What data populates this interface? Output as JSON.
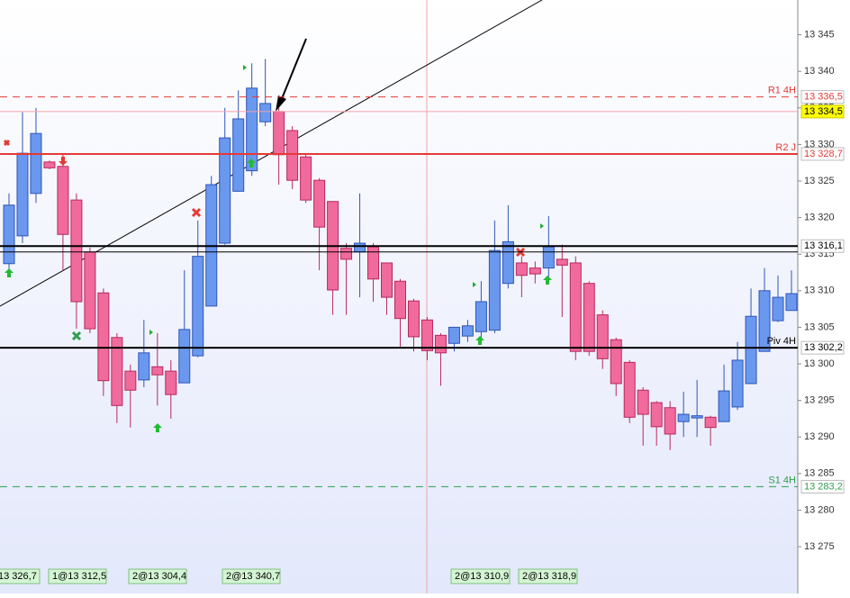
{
  "chart_data": {
    "type": "candlestick",
    "ylim": [
      13270,
      13350
    ],
    "yticks": [
      {
        "value": 13275,
        "label": "13 275"
      },
      {
        "value": 13280,
        "label": "13 280"
      },
      {
        "value": 13285,
        "label": "13 285"
      },
      {
        "value": 13290,
        "label": "13 290"
      },
      {
        "value": 13295,
        "label": "13 295"
      },
      {
        "value": 13300,
        "label": "13 300"
      },
      {
        "value": 13305,
        "label": "13 305"
      },
      {
        "value": 13310,
        "label": "13 310"
      },
      {
        "value": 13315,
        "label": "13 315"
      },
      {
        "value": 13320,
        "label": "13 320"
      },
      {
        "value": 13325,
        "label": "13 325"
      },
      {
        "value": 13330,
        "label": "13 330"
      },
      {
        "value": 13335,
        "label": "13 335"
      },
      {
        "value": 13340,
        "label": "13 340"
      },
      {
        "value": 13345,
        "label": "13 345"
      }
    ],
    "up_color": "#6a98ee",
    "down_color": "#f06b9c",
    "open": [
      13313.7,
      13317.5,
      13323.3,
      13327.6,
      13327.0,
      13322.4,
      13315.3,
      13309.7,
      13303.6,
      13299.0,
      13297.8,
      13299.6,
      13299.0,
      13297.4,
      13301.1,
      13307.9,
      13316.5,
      13323.6,
      13326.4,
      13333.1,
      13334.5,
      13331.9,
      13328.3,
      13325.1,
      13322.2,
      13315.8,
      13315.3,
      13316.0,
      13313.8,
      13311.3,
      13308.6,
      13306.0,
      13303.9,
      13302.8,
      13303.8,
      13304.4,
      13304.6,
      13311.0,
      13313.8,
      13313.1,
      13313.1,
      13314.3,
      13313.8,
      13311.0,
      13306.7,
      13303.3,
      13300.2,
      13296.4,
      13294.7,
      13294.0,
      13292.1,
      13292.6,
      13292.7,
      13292.1,
      13294.1,
      13297.3,
      13301.7,
      13305.9,
      13307.3
    ],
    "high": [
      13323.3,
      13334.4,
      13335.0,
      13327.8,
      13328.8,
      13323.3,
      13315.9,
      13310.3,
      13304.2,
      13299.9,
      13306.0,
      13304.2,
      13300.5,
      13312.8,
      13319.6,
      13325.7,
      13335.0,
      13337.4,
      13341.1,
      13341.7,
      13335.0,
      13332.5,
      13328.6,
      13325.4,
      13322.2,
      13316.5,
      13323.3,
      13316.5,
      13313.8,
      13311.6,
      13308.9,
      13306.4,
      13304.2,
      13305.0,
      13306.0,
      13311.3,
      13319.6,
      13321.7,
      13314.7,
      13314.0,
      13320.2,
      13316.3,
      13314.7,
      13311.3,
      13307.3,
      13303.6,
      13300.5,
      13296.8,
      13294.9,
      13294.9,
      13296.2,
      13297.8,
      13292.9,
      13299.9,
      13303.0,
      13310.3,
      13313.1,
      13312.1,
      13312.8
    ],
    "low": [
      13312.8,
      13316.5,
      13322.0,
      13326.6,
      13312.8,
      13304.8,
      13304.2,
      13295.6,
      13291.9,
      13291.3,
      13296.8,
      13294.3,
      13292.5,
      13297.4,
      13300.9,
      13307.9,
      13316.3,
      13323.6,
      13325.7,
      13332.5,
      13324.5,
      13323.9,
      13322.0,
      13312.8,
      13306.7,
      13306.7,
      13309.1,
      13308.5,
      13306.7,
      13302.3,
      13301.7,
      13300.5,
      13297.0,
      13301.7,
      13303.0,
      13303.0,
      13304.2,
      13310.3,
      13309.1,
      13311.0,
      13311.6,
      13306.4,
      13300.5,
      13301.1,
      13299.3,
      13295.6,
      13291.9,
      13288.8,
      13288.8,
      13288.2,
      13290.0,
      13290.0,
      13288.8,
      13292.1,
      13293.7,
      13297.3,
      13301.7,
      13305.7,
      13307.3
    ],
    "close": [
      13321.7,
      13328.8,
      13331.5,
      13326.8,
      13317.7,
      13308.5,
      13304.8,
      13297.7,
      13294.3,
      13296.4,
      13301.5,
      13298.5,
      13295.8,
      13304.7,
      13314.7,
      13324.5,
      13330.9,
      13333.5,
      13337.7,
      13335.6,
      13328.6,
      13325.1,
      13322.4,
      13318.7,
      13310.1,
      13314.3,
      13316.5,
      13311.6,
      13309.1,
      13306.2,
      13303.7,
      13301.8,
      13301.5,
      13305.0,
      13305.2,
      13308.5,
      13315.5,
      13316.7,
      13312.1,
      13312.3,
      13316.0,
      13313.5,
      13301.7,
      13301.7,
      13300.7,
      13297.3,
      13292.7,
      13293.1,
      13291.4,
      13290.4,
      13293.1,
      13292.9,
      13291.3,
      13296.3,
      13300.5,
      13306.5,
      13310.0,
      13309.1,
      13309.6
    ],
    "levels": [
      {
        "name": "R1 4H",
        "value": 13336.5,
        "label": "13 336,5",
        "color": "#e53935",
        "style": "dashed"
      },
      {
        "value": 13334.5,
        "label": "13 334,5",
        "color": "#f4a0a8",
        "style": "thin",
        "highlight": "#ffff00"
      },
      {
        "name": "R2 J",
        "value": 13328.7,
        "label": "13 328,7",
        "color": "#e53935",
        "style": "solid"
      },
      {
        "value": 13316.1,
        "label": "13 316,1",
        "color": "#000000",
        "style": "solid"
      },
      {
        "value": 13315.3,
        "color": "#000000",
        "style": "thin"
      },
      {
        "name": "Piv 4H",
        "value": 13302.2,
        "label": "13 302,2",
        "color": "#000000",
        "style": "solid"
      },
      {
        "name": "S1 4H",
        "value": 13283.2,
        "label": "13 283,2",
        "color": "#2e9e4a",
        "style": "dashed"
      }
    ],
    "orders": [
      "13 326,7",
      "1@13 312,5",
      "2@13 304,4",
      "2@13 340,7",
      "2@13 310,9",
      "2@13 318,9"
    ]
  }
}
